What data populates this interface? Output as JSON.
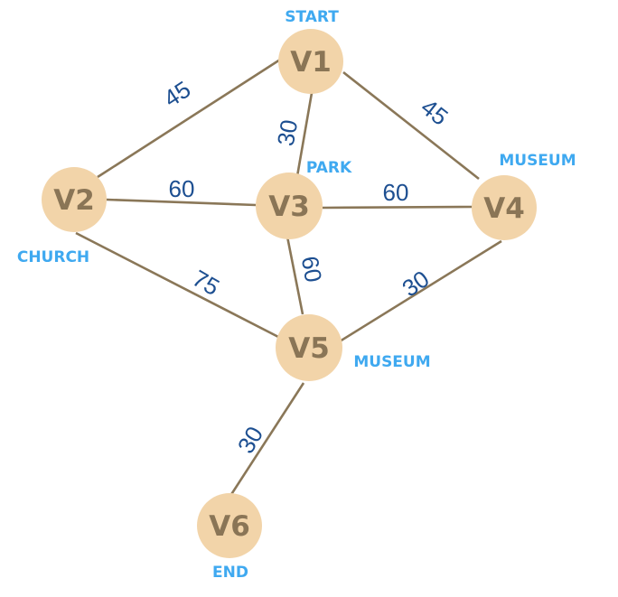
{
  "graph": {
    "nodes": [
      {
        "id": "V1",
        "label": "V1",
        "tag": "START"
      },
      {
        "id": "V2",
        "label": "V2",
        "tag": "CHURCH"
      },
      {
        "id": "V3",
        "label": "V3",
        "tag": "PARK"
      },
      {
        "id": "V4",
        "label": "V4",
        "tag": "MUSEUM"
      },
      {
        "id": "V5",
        "label": "V5",
        "tag": "MUSEUM"
      },
      {
        "id": "V6",
        "label": "V6",
        "tag": "END"
      }
    ],
    "edges": [
      {
        "from": "V1",
        "to": "V2",
        "weight": "45"
      },
      {
        "from": "V1",
        "to": "V3",
        "weight": "30"
      },
      {
        "from": "V1",
        "to": "V4",
        "weight": "45"
      },
      {
        "from": "V2",
        "to": "V3",
        "weight": "60"
      },
      {
        "from": "V3",
        "to": "V4",
        "weight": "60"
      },
      {
        "from": "V2",
        "to": "V5",
        "weight": "75"
      },
      {
        "from": "V3",
        "to": "V5",
        "weight": "60"
      },
      {
        "from": "V4",
        "to": "V5",
        "weight": "30"
      },
      {
        "from": "V5",
        "to": "V6",
        "weight": "30"
      }
    ],
    "colors": {
      "node_fill": "#f2d4a9",
      "node_text": "#8a7556",
      "edge": "#8a7758",
      "weight_text": "#1d4f91",
      "tag_text": "#3fa9f0"
    }
  }
}
